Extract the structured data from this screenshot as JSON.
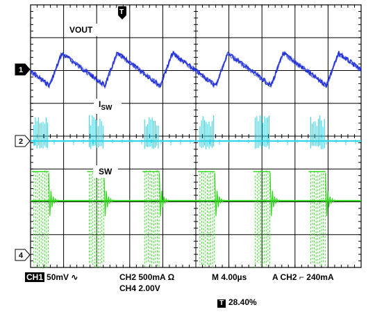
{
  "chart_data": {
    "type": "line",
    "title": "",
    "grid": true,
    "grid_divisions": {
      "horizontal": 10,
      "vertical": 8
    },
    "time_per_division_us": 4.0,
    "x_range_us": [
      0,
      40
    ],
    "trigger_marker": "T",
    "series": [
      {
        "name": "VOUT",
        "channel": "1",
        "color": "#1f2fd6",
        "shape": "sawtooth",
        "period_us": 6.7,
        "phase_us": 2.3,
        "amplitude_div": 0.9
      },
      {
        "name": "ISW",
        "channel": "2",
        "color": "#33d6e8",
        "shape": "switching bursts",
        "period_us": 6.7,
        "burst_us": 1.8,
        "amplitude_div": 0.8
      },
      {
        "name": "SW",
        "channel": "4",
        "color": "#33d61f",
        "shape": "switching pulses with ringing",
        "period_us": 6.7,
        "burst_us": 1.8,
        "amplitude_div": 2.0
      }
    ],
    "labels": {
      "vout": "VOUT",
      "isw_main": "I",
      "isw_sub": "SW",
      "sw": "SW"
    },
    "markers": [
      "1",
      "2",
      "4"
    ]
  },
  "status": {
    "ch1_tag": "CH1",
    "ch1_scale": "50mV",
    "ch1_coupling": "∿",
    "ch2_scale": "CH2 500mA Ω",
    "ch4_scale": "CH4 2.00V",
    "timebase": "M 4.00µs",
    "trigger": "A CH2",
    "trigger_edge": "⌐",
    "trigger_level": "240mA",
    "trigger_pos_tag": "T",
    "trigger_pos": "28.40%"
  },
  "colors": {
    "grid": "#000000",
    "ch1": "#1f2fd6",
    "ch2": "#33d6e8",
    "ch4": "#33d61f"
  }
}
